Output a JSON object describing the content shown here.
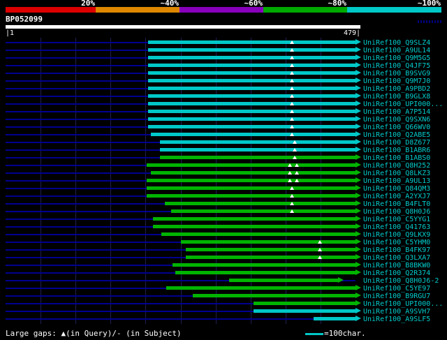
{
  "query": {
    "name": "BP052099"
  },
  "key": {
    "segments": [
      {
        "label": "20%",
        "color": "#dd0000"
      },
      {
        "label": "~40%",
        "color": "#dd8800"
      },
      {
        "label": "~60%",
        "color": "#8800bb"
      },
      {
        "label": "~80%",
        "color": "#00aa00"
      },
      {
        "label": "~100%",
        "color": "#00c8c8"
      }
    ]
  },
  "ruler": {
    "left_label": "|1",
    "right_label": "479|"
  },
  "footer": {
    "gap_note": "Large gaps: ▲(in Query)/- (in Subject)",
    "scale_label": "=100char."
  },
  "colors": {
    "cyan": "#00c8c8",
    "green": "#00b400",
    "query_line": "#000090",
    "grid": "#1e1e55",
    "label": "#00cccc"
  },
  "chart_data": {
    "type": "alignment-overview",
    "query": {
      "name": "BP052099",
      "start": 1,
      "end": 479
    },
    "legend_position": "top",
    "grid": true,
    "rows": [
      {
        "label": "UniRef100_Q9SLZ4",
        "color": "cyan",
        "start": 196,
        "end": 479,
        "gaps": [
          392
        ]
      },
      {
        "label": "UniRef100_A9UL14",
        "color": "cyan",
        "start": 196,
        "end": 479,
        "gaps": [
          392
        ]
      },
      {
        "label": "UniRef100_Q9M5G5",
        "color": "cyan",
        "start": 196,
        "end": 479,
        "gaps": [
          392
        ]
      },
      {
        "label": "UniRef100_Q4JF75",
        "color": "cyan",
        "start": 196,
        "end": 479,
        "gaps": [
          392
        ]
      },
      {
        "label": "UniRef100_B9SVG9",
        "color": "cyan",
        "start": 196,
        "end": 479,
        "gaps": [
          392
        ]
      },
      {
        "label": "UniRef100_Q9M7J0",
        "color": "cyan",
        "start": 196,
        "end": 479,
        "gaps": [
          392
        ]
      },
      {
        "label": "UniRef100_A9PBD2",
        "color": "cyan",
        "start": 196,
        "end": 479,
        "gaps": [
          392
        ]
      },
      {
        "label": "UniRef100_B9GLX8",
        "color": "cyan",
        "start": 196,
        "end": 479,
        "gaps": [
          392
        ]
      },
      {
        "label": "UniRef100_UPI000...",
        "color": "cyan",
        "start": 196,
        "end": 479,
        "gaps": [
          392
        ]
      },
      {
        "label": "UniRef100_A7P514",
        "color": "cyan",
        "start": 196,
        "end": 479,
        "gaps": [
          392
        ]
      },
      {
        "label": "UniRef100_Q9SXN6",
        "color": "cyan",
        "start": 196,
        "end": 479,
        "gaps": [
          392
        ]
      },
      {
        "label": "UniRef100_Q66WV0",
        "color": "cyan",
        "start": 196,
        "end": 479,
        "gaps": [
          392
        ]
      },
      {
        "label": "UniRef100_Q2ABE5",
        "color": "cyan",
        "start": 199,
        "end": 479,
        "gaps": [
          392
        ]
      },
      {
        "label": "UniRef100_D8Z677",
        "color": "cyan",
        "start": 212,
        "end": 479,
        "gaps": [
          396
        ]
      },
      {
        "label": "UniRef100_B1ABR6",
        "color": "cyan",
        "start": 212,
        "end": 479,
        "gaps": [
          396
        ]
      },
      {
        "label": "UniRef100_B1ABS0",
        "color": "green",
        "start": 212,
        "end": 479,
        "gaps": [
          396
        ]
      },
      {
        "label": "UniRef100_Q8H252",
        "color": "green",
        "start": 194,
        "end": 479,
        "gaps": [
          389,
          399
        ]
      },
      {
        "label": "UniRef100_Q8LKZ3",
        "color": "green",
        "start": 199,
        "end": 479,
        "gaps": [
          389,
          399
        ]
      },
      {
        "label": "UniRef100_A9UL13",
        "color": "green",
        "start": 194,
        "end": 479,
        "gaps": [
          389,
          399
        ]
      },
      {
        "label": "UniRef100_Q84QM3",
        "color": "green",
        "start": 194,
        "end": 479,
        "gaps": [
          392
        ]
      },
      {
        "label": "UniRef100_A2YXJ7",
        "color": "green",
        "start": 194,
        "end": 479,
        "gaps": [
          392
        ]
      },
      {
        "label": "UniRef100_B4FLT0",
        "color": "green",
        "start": 219,
        "end": 479,
        "gaps": [
          392
        ]
      },
      {
        "label": "UniRef100_Q8H0J6",
        "color": "green",
        "start": 227,
        "end": 479,
        "gaps": [
          392
        ]
      },
      {
        "label": "UniRef100_C5YYG1",
        "color": "green",
        "start": 202,
        "end": 479,
        "gaps": []
      },
      {
        "label": "UniRef100_Q41763",
        "color": "green",
        "start": 202,
        "end": 479,
        "gaps": []
      },
      {
        "label": "UniRef100_Q9LKX9",
        "color": "green",
        "start": 214,
        "end": 479,
        "gaps": []
      },
      {
        "label": "UniRef100_C5YHM0",
        "color": "green",
        "start": 240,
        "end": 479,
        "gaps": [
          430
        ]
      },
      {
        "label": "UniRef100_B4FK97",
        "color": "green",
        "start": 247,
        "end": 479,
        "gaps": [
          430
        ]
      },
      {
        "label": "UniRef100_Q3LXA7",
        "color": "green",
        "start": 247,
        "end": 479,
        "gaps": [
          430
        ]
      },
      {
        "label": "UniRef100_B8BKW0",
        "color": "green",
        "start": 229,
        "end": 479,
        "gaps": []
      },
      {
        "label": "UniRef100_Q2R374",
        "color": "green",
        "start": 233,
        "end": 479,
        "gaps": []
      },
      {
        "label": "UniRef100_Q8H0J6-2",
        "color": "green",
        "start": 306,
        "end": 455,
        "gaps": []
      },
      {
        "label": "UniRef100_C5YE97",
        "color": "green",
        "start": 220,
        "end": 479,
        "gaps": []
      },
      {
        "label": "UniRef100_B9RGU7",
        "color": "green",
        "start": 257,
        "end": 479,
        "gaps": []
      },
      {
        "label": "UniRef100_UPI000...",
        "color": "green",
        "start": 340,
        "end": 479,
        "gaps": []
      },
      {
        "label": "UniRef100_A9SVH7",
        "color": "cyan",
        "start": 340,
        "end": 479,
        "gaps": []
      },
      {
        "label": "UniRef100_A9SLF5",
        "color": "cyan",
        "start": 422,
        "end": 479,
        "gaps": []
      }
    ]
  }
}
